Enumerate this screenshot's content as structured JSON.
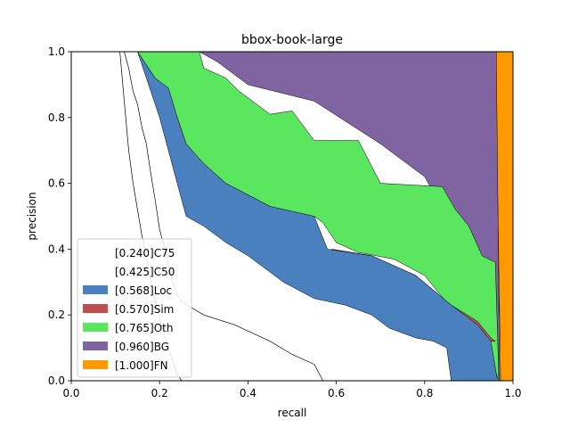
{
  "chart_data": {
    "type": "area",
    "title": "bbox-book-large",
    "xlabel": "recall",
    "ylabel": "precision",
    "xlim": [
      0,
      1
    ],
    "ylim": [
      0,
      1
    ],
    "x_ticks": [
      "0.0",
      "0.2",
      "0.4",
      "0.6",
      "0.8",
      "1.0"
    ],
    "y_ticks": [
      "0.0",
      "0.2",
      "0.4",
      "0.6",
      "0.8",
      "1.0"
    ],
    "grid": false,
    "legend_position": "lower-left",
    "series": [
      {
        "name": "[1.000]FN",
        "color": "#ff9900",
        "points": [
          [
            0.96,
            1.0
          ],
          [
            1.0,
            1.0
          ],
          [
            1.0,
            0.0
          ],
          [
            0.972,
            0.0
          ]
        ]
      },
      {
        "name": "[0.960]BG",
        "color": "#8063a1",
        "points": [
          [
            0.29,
            1.0
          ],
          [
            0.962,
            1.0
          ],
          [
            0.97,
            0.0
          ],
          [
            0.95,
            0.16
          ],
          [
            0.9,
            0.3
          ],
          [
            0.85,
            0.5
          ],
          [
            0.8,
            0.62
          ],
          [
            0.7,
            0.72
          ],
          [
            0.55,
            0.85
          ],
          [
            0.4,
            0.9
          ],
          [
            0.33,
            0.97
          ]
        ]
      },
      {
        "name": "[0.765]Oth",
        "color": "#5ae65f",
        "points": [
          [
            0.15,
            1.0
          ],
          [
            0.29,
            1.0
          ],
          [
            0.3,
            0.95
          ],
          [
            0.35,
            0.92
          ],
          [
            0.38,
            0.88
          ],
          [
            0.45,
            0.81
          ],
          [
            0.5,
            0.82
          ],
          [
            0.55,
            0.73
          ],
          [
            0.65,
            0.73
          ],
          [
            0.7,
            0.6
          ],
          [
            0.84,
            0.59
          ],
          [
            0.87,
            0.52
          ],
          [
            0.9,
            0.47
          ],
          [
            0.93,
            0.38
          ],
          [
            0.96,
            0.36
          ],
          [
            0.968,
            0.0
          ],
          [
            0.94,
            0.1
          ],
          [
            0.9,
            0.17
          ],
          [
            0.86,
            0.22
          ],
          [
            0.8,
            0.32
          ],
          [
            0.73,
            0.37
          ],
          [
            0.65,
            0.39
          ],
          [
            0.6,
            0.42
          ],
          [
            0.57,
            0.48
          ],
          [
            0.55,
            0.5
          ],
          [
            0.52,
            0.5
          ],
          [
            0.45,
            0.53
          ],
          [
            0.35,
            0.6
          ],
          [
            0.3,
            0.66
          ],
          [
            0.26,
            0.72
          ],
          [
            0.24,
            0.8
          ],
          [
            0.22,
            0.88
          ],
          [
            0.19,
            0.92
          ],
          [
            0.16,
            0.98
          ]
        ]
      },
      {
        "name": "[0.570]Sim",
        "color": "#bf4f4d",
        "points": [
          [
            0.59,
            0.4
          ],
          [
            0.68,
            0.38
          ],
          [
            0.78,
            0.32
          ],
          [
            0.86,
            0.23
          ],
          [
            0.92,
            0.18
          ],
          [
            0.95,
            0.13
          ],
          [
            0.96,
            0.12
          ],
          [
            0.95,
            0.12
          ],
          [
            0.92,
            0.16
          ],
          [
            0.86,
            0.21
          ],
          [
            0.78,
            0.3
          ],
          [
            0.68,
            0.36
          ],
          [
            0.59,
            0.39
          ]
        ]
      },
      {
        "name": "[0.568]Loc",
        "color": "#4a80bd",
        "points": [
          [
            0.15,
            1.0
          ],
          [
            0.16,
            0.98
          ],
          [
            0.19,
            0.92
          ],
          [
            0.22,
            0.89
          ],
          [
            0.24,
            0.8
          ],
          [
            0.26,
            0.72
          ],
          [
            0.3,
            0.66
          ],
          [
            0.35,
            0.6
          ],
          [
            0.45,
            0.53
          ],
          [
            0.55,
            0.5
          ],
          [
            0.58,
            0.4
          ],
          [
            0.68,
            0.38
          ],
          [
            0.78,
            0.32
          ],
          [
            0.86,
            0.23
          ],
          [
            0.92,
            0.17
          ],
          [
            0.95,
            0.12
          ],
          [
            0.965,
            0.0
          ],
          [
            0.86,
            0.0
          ],
          [
            0.85,
            0.1
          ],
          [
            0.82,
            0.12
          ],
          [
            0.78,
            0.13
          ],
          [
            0.72,
            0.16
          ],
          [
            0.68,
            0.2
          ],
          [
            0.62,
            0.23
          ],
          [
            0.55,
            0.25
          ],
          [
            0.48,
            0.3
          ],
          [
            0.4,
            0.38
          ],
          [
            0.35,
            0.42
          ],
          [
            0.3,
            0.47
          ],
          [
            0.26,
            0.5
          ],
          [
            0.24,
            0.6
          ],
          [
            0.22,
            0.7
          ],
          [
            0.2,
            0.8
          ],
          [
            0.18,
            0.88
          ]
        ]
      },
      {
        "name": "[0.425]C50",
        "color": "#000000",
        "line": [
          [
            0.12,
            1.0
          ],
          [
            0.13,
            0.95
          ],
          [
            0.14,
            0.88
          ],
          [
            0.15,
            0.84
          ],
          [
            0.16,
            0.77
          ],
          [
            0.17,
            0.72
          ],
          [
            0.18,
            0.63
          ],
          [
            0.19,
            0.55
          ],
          [
            0.2,
            0.46
          ],
          [
            0.21,
            0.41
          ],
          [
            0.22,
            0.35
          ],
          [
            0.23,
            0.3
          ],
          [
            0.24,
            0.26
          ],
          [
            0.25,
            0.24
          ],
          [
            0.3,
            0.2
          ],
          [
            0.37,
            0.17
          ],
          [
            0.45,
            0.12
          ],
          [
            0.5,
            0.08
          ],
          [
            0.55,
            0.05
          ],
          [
            0.57,
            0.0
          ]
        ]
      },
      {
        "name": "[0.240]C75",
        "color": "#000000",
        "line": [
          [
            0.11,
            1.0
          ],
          [
            0.12,
            0.85
          ],
          [
            0.13,
            0.7
          ],
          [
            0.14,
            0.6
          ],
          [
            0.15,
            0.52
          ],
          [
            0.16,
            0.44
          ],
          [
            0.17,
            0.38
          ],
          [
            0.18,
            0.3
          ],
          [
            0.19,
            0.24
          ],
          [
            0.2,
            0.19
          ],
          [
            0.21,
            0.14
          ],
          [
            0.22,
            0.1
          ],
          [
            0.23,
            0.06
          ],
          [
            0.24,
            0.02
          ],
          [
            0.25,
            0.0
          ]
        ]
      }
    ],
    "legend": [
      {
        "label": "[0.240]C75",
        "color": "#ffffff"
      },
      {
        "label": "[0.425]C50",
        "color": "#ffffff"
      },
      {
        "label": "[0.568]Loc",
        "color": "#4a80bd"
      },
      {
        "label": "[0.570]Sim",
        "color": "#bf4f4d"
      },
      {
        "label": "[0.765]Oth",
        "color": "#5ae65f"
      },
      {
        "label": "[0.960]BG",
        "color": "#8063a1"
      },
      {
        "label": "[1.000]FN",
        "color": "#ff9900"
      }
    ]
  }
}
